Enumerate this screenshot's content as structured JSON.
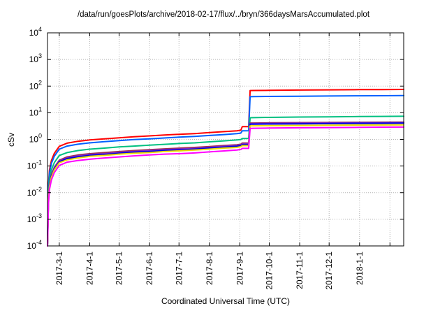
{
  "chart_data": {
    "type": "line",
    "title": "/data/run/goesPlots/archive/2018-02-17/flux/../bryn/366daysMarsAccumulated.plot",
    "xlabel": "Coordinated Universal Time (UTC)",
    "ylabel": "cSv",
    "y_scale": "log",
    "ylim": [
      0.0001,
      10000
    ],
    "y_tick_exponents": [
      4,
      3,
      2,
      1,
      0,
      -1,
      -2,
      -3,
      -4
    ],
    "grid": true,
    "legend_position": "none",
    "x_axis_note": "days measured from left edge of plot; labeled ticks are month starts",
    "x_range_days": [
      0,
      363
    ],
    "x_ticks": [
      {
        "label": "2017-3-1",
        "day": 12
      },
      {
        "label": "2017-4-1",
        "day": 43
      },
      {
        "label": "2017-5-1",
        "day": 73
      },
      {
        "label": "2017-6-1",
        "day": 104
      },
      {
        "label": "2017-7-1",
        "day": 134
      },
      {
        "label": "2017-8-1",
        "day": 165
      },
      {
        "label": "2017-9-1",
        "day": 196
      },
      {
        "label": "2017-10-1",
        "day": 226
      },
      {
        "label": "2017-11-1",
        "day": 257
      },
      {
        "label": "2017-12-1",
        "day": 287
      },
      {
        "label": "2018-1-1",
        "day": 318
      },
      {
        "label": "",
        "day": 349
      }
    ],
    "x_days": [
      0,
      0.4,
      1,
      2,
      4,
      7,
      12,
      20,
      31,
      43,
      58,
      73,
      88,
      104,
      119,
      134,
      150,
      165,
      180,
      193,
      197,
      198.5,
      205,
      206.5,
      210,
      226,
      257,
      287,
      318,
      340,
      363
    ],
    "series": [
      {
        "name": "red-curve",
        "color": "#ff0000",
        "values": [
          0.0001,
          0.002,
          0.02,
          0.07,
          0.16,
          0.3,
          0.55,
          0.72,
          0.85,
          0.95,
          1.05,
          1.15,
          1.25,
          1.35,
          1.45,
          1.55,
          1.65,
          1.8,
          1.95,
          2.1,
          2.2,
          3.0,
          3.02,
          68,
          68.5,
          69.5,
          71,
          72.5,
          73.5,
          74.3,
          75
        ]
      },
      {
        "name": "blue-curve",
        "color": "#0060ff",
        "values": [
          0.0001,
          0.0016,
          0.016,
          0.055,
          0.125,
          0.235,
          0.43,
          0.56,
          0.66,
          0.74,
          0.82,
          0.9,
          0.98,
          1.05,
          1.13,
          1.21,
          1.29,
          1.4,
          1.52,
          1.64,
          1.72,
          2.1,
          2.11,
          40,
          40.3,
          41,
          41.8,
          42.6,
          43.2,
          43.7,
          44
        ]
      },
      {
        "name": "green-curve",
        "color": "#00c080",
        "values": [
          0.0001,
          0.0009,
          0.009,
          0.032,
          0.072,
          0.135,
          0.25,
          0.32,
          0.38,
          0.43,
          0.47,
          0.52,
          0.56,
          0.61,
          0.65,
          0.7,
          0.74,
          0.81,
          0.88,
          0.95,
          0.99,
          1.08,
          1.09,
          6.5,
          6.55,
          6.7,
          6.9,
          7.05,
          7.2,
          7.3,
          7.4
        ]
      },
      {
        "name": "maroon-curve",
        "color": "#a03050",
        "values": [
          0.0001,
          0.0006,
          0.006,
          0.021,
          0.048,
          0.09,
          0.165,
          0.22,
          0.26,
          0.29,
          0.32,
          0.35,
          0.38,
          0.41,
          0.44,
          0.47,
          0.5,
          0.54,
          0.59,
          0.63,
          0.66,
          0.73,
          0.73,
          4.1,
          4.12,
          4.18,
          4.25,
          4.32,
          4.38,
          4.42,
          4.45
        ]
      },
      {
        "name": "purple-curve",
        "color": "#7d26cd",
        "values": [
          0.0001,
          0.00055,
          0.0055,
          0.02,
          0.045,
          0.084,
          0.154,
          0.2,
          0.24,
          0.27,
          0.29,
          0.32,
          0.35,
          0.38,
          0.41,
          0.43,
          0.46,
          0.5,
          0.55,
          0.59,
          0.62,
          0.68,
          0.68,
          3.9,
          3.92,
          3.98,
          4.05,
          4.12,
          4.18,
          4.22,
          4.25
        ]
      },
      {
        "name": "navy-curve",
        "color": "#0000e0",
        "values": [
          0.0001,
          0.0005,
          0.005,
          0.018,
          0.042,
          0.078,
          0.143,
          0.19,
          0.22,
          0.25,
          0.27,
          0.3,
          0.33,
          0.35,
          0.38,
          0.4,
          0.43,
          0.47,
          0.51,
          0.55,
          0.57,
          0.63,
          0.63,
          3.7,
          3.72,
          3.78,
          3.85,
          3.92,
          3.98,
          4.02,
          4.05
        ]
      },
      {
        "name": "yellow-curve",
        "color": "#ecdc00",
        "values": [
          0.0001,
          0.00048,
          0.0048,
          0.017,
          0.038,
          0.072,
          0.132,
          0.17,
          0.2,
          0.23,
          0.25,
          0.28,
          0.3,
          0.32,
          0.35,
          0.37,
          0.4,
          0.43,
          0.47,
          0.5,
          0.53,
          0.58,
          0.58,
          3.2,
          3.22,
          3.27,
          3.33,
          3.4,
          3.45,
          3.48,
          3.5
        ]
      },
      {
        "name": "magenta-curve",
        "color": "#ff00ff",
        "values": [
          0.0001,
          0.0004,
          0.0038,
          0.013,
          0.03,
          0.057,
          0.105,
          0.14,
          0.16,
          0.18,
          0.2,
          0.22,
          0.24,
          0.26,
          0.28,
          0.29,
          0.31,
          0.34,
          0.37,
          0.4,
          0.42,
          0.46,
          0.46,
          2.6,
          2.62,
          2.66,
          2.72,
          2.78,
          2.83,
          2.87,
          2.9
        ]
      }
    ],
    "colors": {
      "grid": "#b4b4b4",
      "border": "#000000",
      "background": "#ffffff"
    }
  }
}
